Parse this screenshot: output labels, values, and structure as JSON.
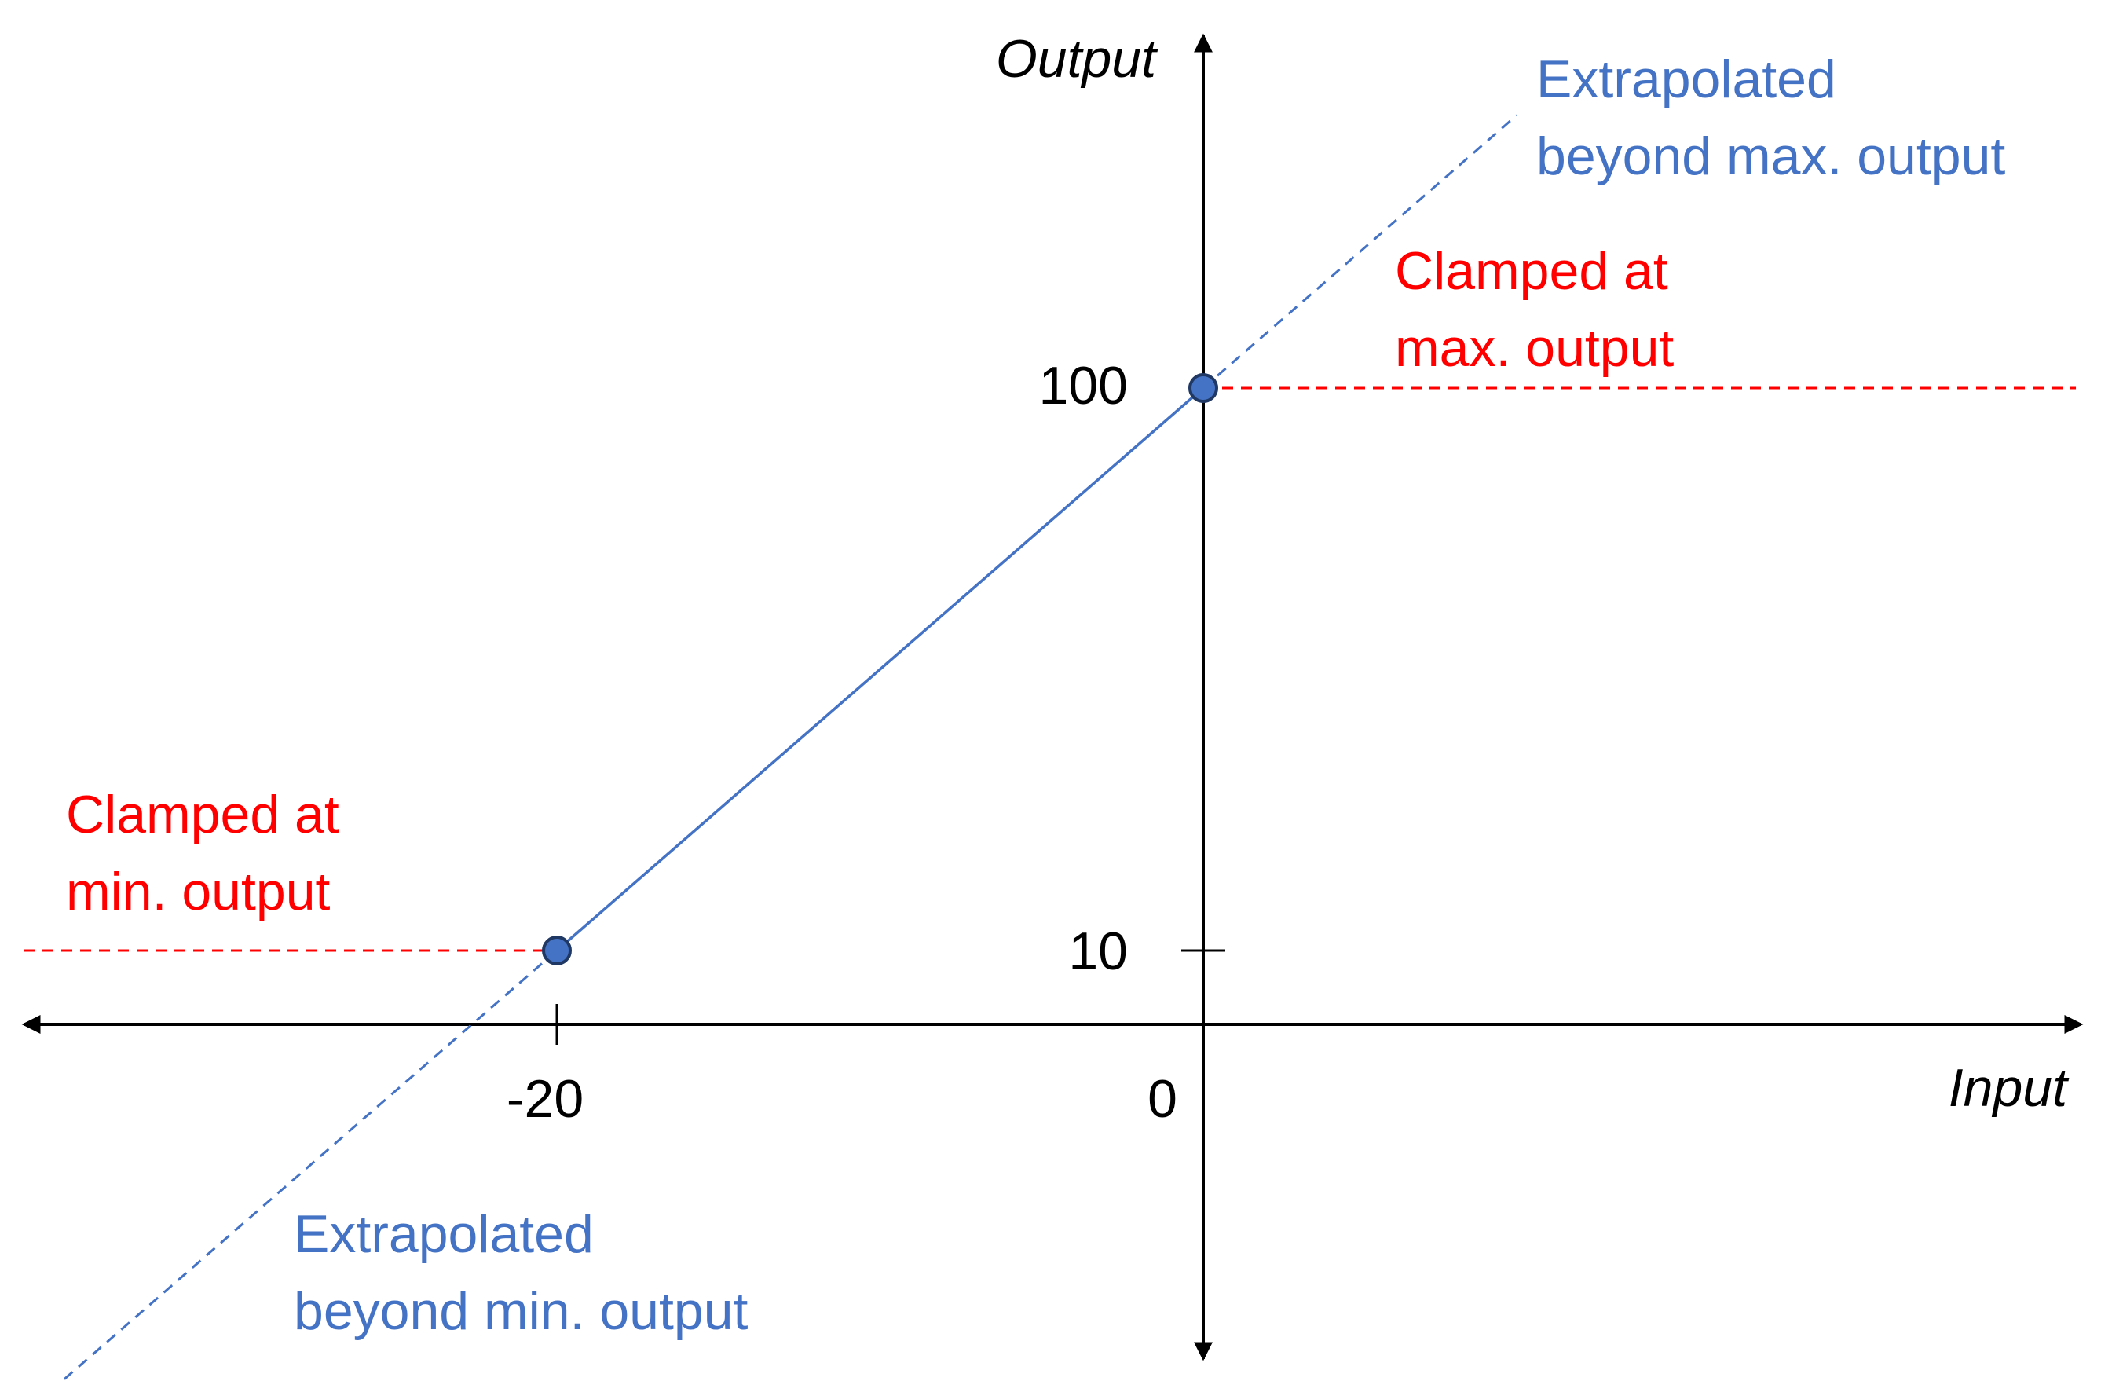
{
  "chart_data": {
    "type": "line",
    "xlabel": "Input",
    "ylabel": "Output",
    "x_ticks": [
      {
        "value": -20,
        "label": "-20"
      },
      {
        "value": 0,
        "label": "0"
      }
    ],
    "y_ticks": [
      {
        "value": 10,
        "label": "10"
      },
      {
        "value": 100,
        "label": "100"
      }
    ],
    "control_points": [
      {
        "x": -20,
        "y": 10
      },
      {
        "x": 0,
        "y": 100
      }
    ],
    "segments": {
      "interpolated": {
        "from_x": -20,
        "to_x": 0
      },
      "extrapolated_min": {
        "from_x": -37,
        "to_x": -20
      },
      "extrapolated_max": {
        "from_x": 0,
        "to_x": 9.7
      },
      "clamped_min": {
        "y": 10,
        "from_x": -36.5,
        "to_x": -20
      },
      "clamped_max": {
        "y": 100,
        "from_x": 0,
        "to_x": 27
      }
    },
    "annotations": {
      "extrapolated_max": {
        "line1": "Extrapolated",
        "line2": "beyond max. output"
      },
      "clamped_max": {
        "line1": "Clamped at",
        "line2": "max. output"
      },
      "clamped_min": {
        "line1": "Clamped at",
        "line2": "min. output"
      },
      "extrapolated_min": {
        "line1": "Extrapolated",
        "line2": "beyond min. output"
      }
    },
    "colors": {
      "axis": "#000000",
      "line": "#4472C4",
      "clamp": "#FF0000",
      "point_fill": "#4472C4",
      "point_stroke": "#1F3864"
    }
  }
}
